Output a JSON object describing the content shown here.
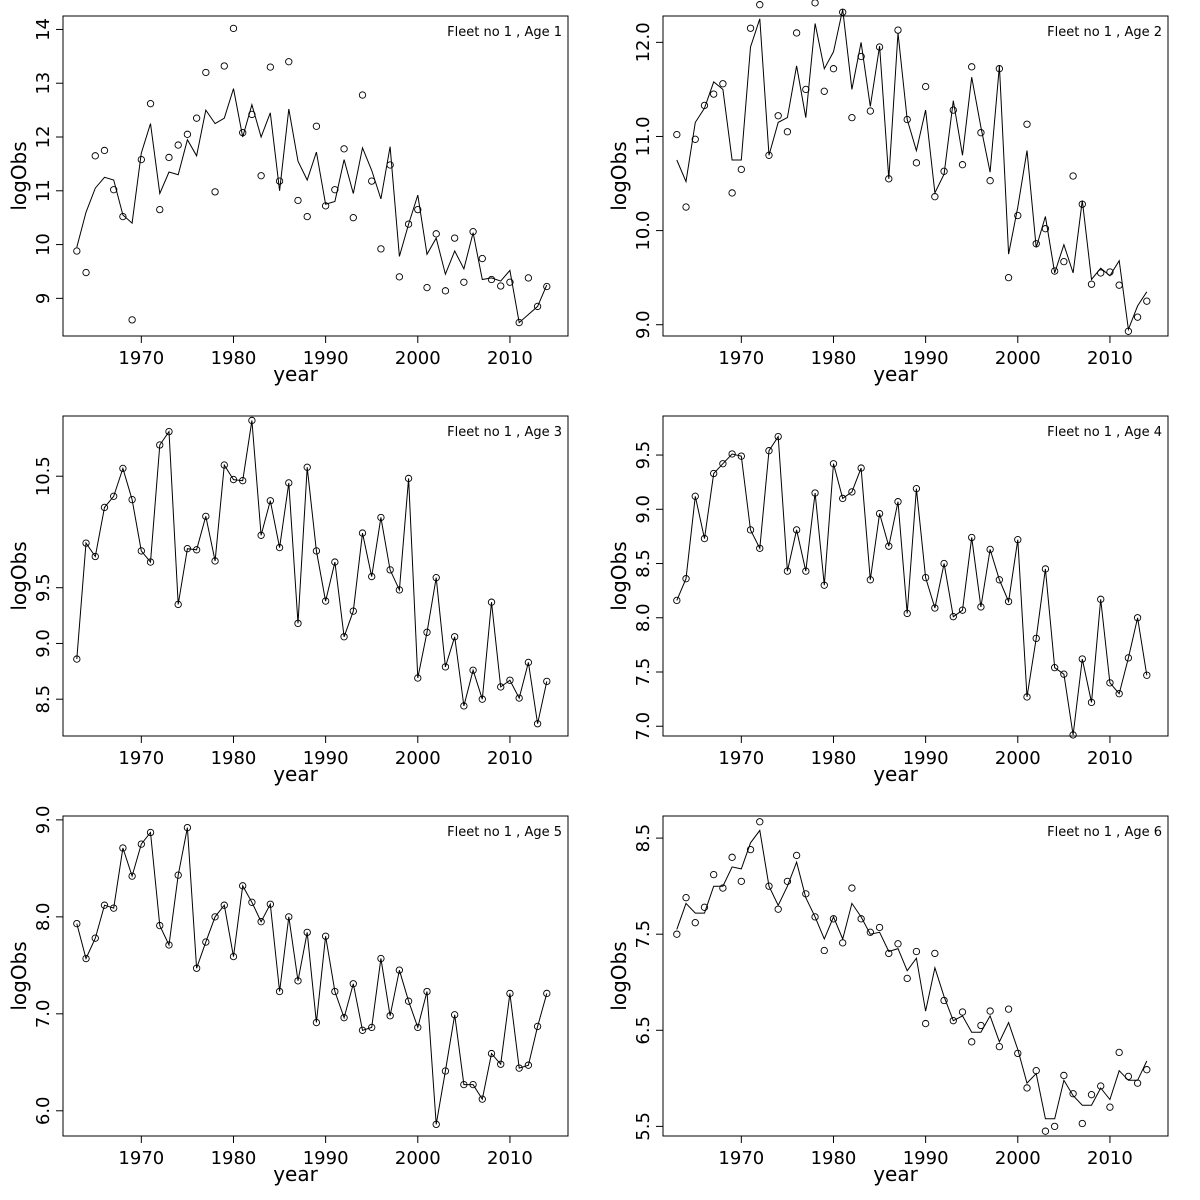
{
  "chart_data": [
    {
      "type": "scatter",
      "title": "Fleet no 1 , Age 1",
      "xlabel": "year",
      "ylabel": "logObs",
      "xlim": [
        1961.5,
        2016.3
      ],
      "ylim": [
        8.3,
        14.25
      ],
      "xticks": [
        "1970",
        "1980",
        "1990",
        "2000",
        "2010"
      ],
      "yticks": [
        "9",
        "10",
        "11",
        "12",
        "13",
        "14"
      ],
      "x": [
        1963,
        1964,
        1965,
        1966,
        1967,
        1968,
        1969,
        1970,
        1971,
        1972,
        1973,
        1974,
        1975,
        1976,
        1977,
        1978,
        1979,
        1980,
        1981,
        1982,
        1983,
        1984,
        1985,
        1986,
        1987,
        1988,
        1989,
        1990,
        1991,
        1992,
        1993,
        1994,
        1995,
        1996,
        1997,
        1998,
        1999,
        2000,
        2001,
        2002,
        2003,
        2004,
        2005,
        2006,
        2007,
        2008,
        2009,
        2010,
        2011,
        2012,
        2013,
        2014
      ],
      "series": [
        {
          "kind": "points",
          "values": [
            9.88,
            9.48,
            11.65,
            11.75,
            11.02,
            10.52,
            8.6,
            11.58,
            12.62,
            10.65,
            11.62,
            11.85,
            12.05,
            12.35,
            13.2,
            10.98,
            13.32,
            14.02,
            12.08,
            12.42,
            11.28,
            13.3,
            11.18,
            13.4,
            10.82,
            10.52,
            12.2,
            10.72,
            11.02,
            11.78,
            10.5,
            12.78,
            11.18,
            9.92,
            11.48,
            9.4,
            10.38,
            10.65,
            9.2,
            10.2,
            9.14,
            10.12,
            9.3,
            10.24,
            9.74,
            9.35,
            9.23,
            9.3,
            8.55,
            9.38,
            8.85,
            9.22
          ]
        },
        {
          "kind": "line",
          "values": [
            9.95,
            10.6,
            11.05,
            11.25,
            11.2,
            10.55,
            10.4,
            11.7,
            12.25,
            10.95,
            11.35,
            11.3,
            11.95,
            11.65,
            12.5,
            12.25,
            12.35,
            12.9,
            12.0,
            12.6,
            12.0,
            12.45,
            11.0,
            12.52,
            11.55,
            11.2,
            11.72,
            10.75,
            10.8,
            11.58,
            10.95,
            11.8,
            11.38,
            10.85,
            11.82,
            9.78,
            10.38,
            10.92,
            9.82,
            10.12,
            9.45,
            9.88,
            9.55,
            10.22,
            9.35,
            9.38,
            9.32,
            9.52,
            8.55,
            8.7,
            8.85,
            9.25
          ]
        }
      ]
    },
    {
      "type": "scatter",
      "title": "Fleet no 1 , Age 2",
      "xlabel": "year",
      "ylabel": "logObs",
      "xlim": [
        1961.5,
        2016.3
      ],
      "ylim": [
        8.88,
        12.28
      ],
      "xticks": [
        "1970",
        "1980",
        "1990",
        "2000",
        "2010"
      ],
      "yticks": [
        "9.0",
        "10.0",
        "11.0",
        "12.0"
      ],
      "x": [
        1963,
        1964,
        1965,
        1966,
        1967,
        1968,
        1969,
        1970,
        1971,
        1972,
        1973,
        1974,
        1975,
        1976,
        1977,
        1978,
        1979,
        1980,
        1981,
        1982,
        1983,
        1984,
        1985,
        1986,
        1987,
        1988,
        1989,
        1990,
        1991,
        1992,
        1993,
        1994,
        1995,
        1996,
        1997,
        1998,
        1999,
        2000,
        2001,
        2002,
        2003,
        2004,
        2005,
        2006,
        2007,
        2008,
        2009,
        2010,
        2011,
        2012,
        2013,
        2014
      ],
      "series": [
        {
          "kind": "points",
          "values": [
            11.02,
            10.25,
            10.97,
            11.33,
            11.45,
            11.56,
            10.4,
            10.65,
            12.15,
            12.4,
            10.8,
            11.22,
            11.05,
            12.1,
            11.5,
            12.42,
            11.48,
            11.72,
            12.32,
            11.2,
            11.85,
            11.27,
            11.95,
            10.55,
            12.13,
            11.18,
            10.72,
            11.53,
            10.36,
            10.63,
            11.28,
            10.7,
            11.74,
            11.04,
            10.53,
            11.72,
            9.5,
            10.16,
            11.13,
            9.86,
            10.02,
            9.57,
            9.67,
            10.58,
            10.28,
            9.43,
            9.55,
            9.56,
            9.42,
            8.93,
            9.08,
            9.25
          ]
        },
        {
          "kind": "line",
          "values": [
            10.75,
            10.52,
            11.15,
            11.3,
            11.58,
            11.5,
            10.75,
            10.75,
            11.95,
            12.25,
            10.8,
            11.15,
            11.2,
            11.75,
            11.2,
            12.2,
            11.72,
            11.9,
            12.35,
            11.5,
            12.0,
            11.32,
            11.96,
            10.55,
            12.1,
            11.18,
            10.85,
            11.28,
            10.4,
            10.6,
            11.38,
            10.8,
            11.63,
            11.1,
            10.62,
            11.75,
            9.75,
            10.25,
            10.85,
            9.82,
            10.15,
            9.55,
            9.85,
            9.55,
            10.32,
            9.48,
            9.6,
            9.52,
            9.68,
            8.95,
            9.2,
            9.35
          ]
        }
      ]
    },
    {
      "type": "scatter",
      "title": "Fleet no 1 , Age 3",
      "xlabel": "year",
      "ylabel": "logObs",
      "xlim": [
        1961.5,
        2016.3
      ],
      "ylim": [
        8.17,
        11.04
      ],
      "xticks": [
        "1970",
        "1980",
        "1990",
        "2000",
        "2010"
      ],
      "yticks": [
        "8.5",
        "9.0",
        "9.5",
        "10.5"
      ],
      "x": [
        1963,
        1964,
        1965,
        1966,
        1967,
        1968,
        1969,
        1970,
        1971,
        1972,
        1973,
        1974,
        1975,
        1976,
        1977,
        1978,
        1979,
        1980,
        1981,
        1982,
        1983,
        1984,
        1985,
        1986,
        1987,
        1988,
        1989,
        1990,
        1991,
        1992,
        1993,
        1994,
        1995,
        1996,
        1997,
        1998,
        1999,
        2000,
        2001,
        2002,
        2003,
        2004,
        2005,
        2006,
        2007,
        2008,
        2009,
        2010,
        2011,
        2012,
        2013,
        2014
      ],
      "series": [
        {
          "kind": "points",
          "values": [
            8.86,
            9.9,
            9.78,
            10.22,
            10.32,
            10.57,
            10.29,
            9.83,
            9.73,
            10.78,
            10.9,
            9.35,
            9.85,
            9.84,
            10.14,
            9.74,
            10.6,
            10.47,
            10.46,
            11.0,
            9.97,
            10.28,
            9.86,
            10.44,
            9.18,
            10.58,
            9.83,
            9.38,
            9.73,
            9.06,
            9.29,
            9.99,
            9.6,
            10.13,
            9.66,
            9.48,
            10.48,
            8.69,
            9.1,
            9.59,
            8.79,
            9.06,
            8.44,
            8.76,
            8.5,
            9.37,
            8.61,
            8.67,
            8.51,
            8.83,
            8.28,
            8.66
          ]
        },
        {
          "kind": "line",
          "values": [
            8.86,
            9.9,
            9.78,
            10.22,
            10.32,
            10.57,
            10.29,
            9.83,
            9.73,
            10.78,
            10.9,
            9.35,
            9.85,
            9.84,
            10.14,
            9.74,
            10.6,
            10.47,
            10.46,
            11.0,
            9.97,
            10.28,
            9.86,
            10.44,
            9.18,
            10.58,
            9.83,
            9.38,
            9.73,
            9.06,
            9.29,
            9.99,
            9.6,
            10.13,
            9.66,
            9.48,
            10.48,
            8.69,
            9.1,
            9.59,
            8.79,
            9.06,
            8.44,
            8.76,
            8.5,
            9.37,
            8.61,
            8.67,
            8.51,
            8.83,
            8.28,
            8.66
          ]
        }
      ]
    },
    {
      "type": "scatter",
      "title": "Fleet no 1 , Age 4",
      "xlabel": "year",
      "ylabel": "logObs",
      "xlim": [
        1961.5,
        2016.3
      ],
      "ylim": [
        6.91,
        9.86
      ],
      "xticks": [
        "1970",
        "1980",
        "1990",
        "2000",
        "2010"
      ],
      "yticks": [
        "7.0",
        "7.5",
        "8.0",
        "8.5",
        "9.0",
        "9.5"
      ],
      "x": [
        1963,
        1964,
        1965,
        1966,
        1967,
        1968,
        1969,
        1970,
        1971,
        1972,
        1973,
        1974,
        1975,
        1976,
        1977,
        1978,
        1979,
        1980,
        1981,
        1982,
        1983,
        1984,
        1985,
        1986,
        1987,
        1988,
        1989,
        1990,
        1991,
        1992,
        1993,
        1994,
        1995,
        1996,
        1997,
        1998,
        1999,
        2000,
        2001,
        2002,
        2003,
        2004,
        2005,
        2006,
        2007,
        2008,
        2009,
        2010,
        2011,
        2012,
        2013,
        2014
      ],
      "series": [
        {
          "kind": "points",
          "values": [
            8.16,
            8.36,
            9.12,
            8.73,
            9.33,
            9.42,
            9.51,
            9.49,
            8.81,
            8.64,
            9.54,
            9.67,
            8.43,
            8.81,
            8.43,
            9.15,
            8.3,
            9.42,
            9.1,
            9.16,
            9.38,
            8.35,
            8.96,
            8.66,
            9.07,
            8.04,
            9.19,
            8.37,
            8.09,
            8.5,
            8.01,
            8.07,
            8.74,
            8.1,
            8.63,
            8.35,
            8.15,
            8.72,
            7.27,
            7.81,
            8.45,
            7.54,
            7.48,
            6.92,
            7.62,
            7.22,
            8.17,
            7.4,
            7.3,
            7.63,
            8.0,
            7.47
          ]
        },
        {
          "kind": "line",
          "values": [
            8.16,
            8.36,
            9.12,
            8.73,
            9.33,
            9.42,
            9.51,
            9.49,
            8.81,
            8.64,
            9.54,
            9.67,
            8.43,
            8.81,
            8.43,
            9.15,
            8.3,
            9.42,
            9.1,
            9.16,
            9.38,
            8.35,
            8.96,
            8.66,
            9.07,
            8.04,
            9.19,
            8.37,
            8.09,
            8.5,
            8.01,
            8.07,
            8.74,
            8.1,
            8.63,
            8.35,
            8.15,
            8.72,
            7.27,
            7.81,
            8.45,
            7.54,
            7.48,
            6.92,
            7.62,
            7.22,
            8.17,
            7.4,
            7.3,
            7.63,
            8.0,
            7.47
          ]
        }
      ]
    },
    {
      "type": "scatter",
      "title": "Fleet no 1 , Age 5",
      "xlabel": "year",
      "ylabel": "logObs",
      "xlim": [
        1961.5,
        2016.3
      ],
      "ylim": [
        5.74,
        9.04
      ],
      "xticks": [
        "1970",
        "1980",
        "1990",
        "2000",
        "2010"
      ],
      "yticks": [
        "6.0",
        "7.0",
        "8.0",
        "9.0"
      ],
      "x": [
        1963,
        1964,
        1965,
        1966,
        1967,
        1968,
        1969,
        1970,
        1971,
        1972,
        1973,
        1974,
        1975,
        1976,
        1977,
        1978,
        1979,
        1980,
        1981,
        1982,
        1983,
        1984,
        1985,
        1986,
        1987,
        1988,
        1989,
        1990,
        1991,
        1992,
        1993,
        1994,
        1995,
        1996,
        1997,
        1998,
        1999,
        2000,
        2001,
        2002,
        2003,
        2004,
        2005,
        2006,
        2007,
        2008,
        2009,
        2010,
        2011,
        2012,
        2013,
        2014
      ],
      "series": [
        {
          "kind": "points",
          "values": [
            7.93,
            7.57,
            7.78,
            8.12,
            8.09,
            8.71,
            8.42,
            8.75,
            8.87,
            7.91,
            7.71,
            8.43,
            8.92,
            7.47,
            7.74,
            8.0,
            8.12,
            7.59,
            8.32,
            8.15,
            7.95,
            8.13,
            7.23,
            8.0,
            7.34,
            7.84,
            6.91,
            7.8,
            7.23,
            6.96,
            7.31,
            6.83,
            6.86,
            7.57,
            6.98,
            7.45,
            7.13,
            6.86,
            7.23,
            5.86,
            6.41,
            6.99,
            6.27,
            6.27,
            6.12,
            6.59,
            6.48,
            7.21,
            6.44,
            6.47,
            6.87,
            7.21
          ]
        },
        {
          "kind": "line",
          "values": [
            7.93,
            7.57,
            7.78,
            8.12,
            8.09,
            8.71,
            8.42,
            8.75,
            8.87,
            7.91,
            7.71,
            8.43,
            8.92,
            7.47,
            7.74,
            8.0,
            8.12,
            7.59,
            8.32,
            8.15,
            7.95,
            8.13,
            7.23,
            8.0,
            7.34,
            7.84,
            6.91,
            7.8,
            7.23,
            6.96,
            7.31,
            6.83,
            6.86,
            7.57,
            6.98,
            7.45,
            7.13,
            6.86,
            7.23,
            5.86,
            6.41,
            6.99,
            6.27,
            6.27,
            6.12,
            6.59,
            6.48,
            7.21,
            6.44,
            6.47,
            6.87,
            7.21
          ]
        }
      ]
    },
    {
      "type": "scatter",
      "title": "Fleet no 1 , Age 6",
      "xlabel": "year",
      "ylabel": "logObs",
      "xlim": [
        1961.5,
        2016.3
      ],
      "ylim": [
        5.4,
        8.73
      ],
      "xticks": [
        "1970",
        "1980",
        "1990",
        "2000",
        "2010"
      ],
      "yticks": [
        "5.5",
        "6.5",
        "7.5",
        "8.5"
      ],
      "x": [
        1963,
        1964,
        1965,
        1966,
        1967,
        1968,
        1969,
        1970,
        1971,
        1972,
        1973,
        1974,
        1975,
        1976,
        1977,
        1978,
        1979,
        1980,
        1981,
        1982,
        1983,
        1984,
        1985,
        1986,
        1987,
        1988,
        1989,
        1990,
        1991,
        1992,
        1993,
        1994,
        1995,
        1996,
        1997,
        1998,
        1999,
        2000,
        2001,
        2002,
        2003,
        2004,
        2005,
        2006,
        2007,
        2008,
        2009,
        2010,
        2011,
        2012,
        2013,
        2014
      ],
      "series": [
        {
          "kind": "points",
          "values": [
            7.5,
            7.88,
            7.62,
            7.78,
            8.12,
            7.98,
            8.3,
            8.05,
            8.38,
            8.67,
            8.0,
            7.76,
            8.05,
            8.32,
            7.92,
            7.68,
            7.33,
            7.66,
            7.41,
            7.98,
            7.66,
            7.52,
            7.57,
            7.3,
            7.4,
            7.04,
            7.32,
            6.57,
            7.3,
            6.81,
            6.6,
            6.69,
            6.38,
            6.55,
            6.7,
            6.33,
            6.72,
            6.26,
            5.9,
            6.08,
            5.45,
            5.5,
            6.03,
            5.84,
            5.53,
            5.83,
            5.92,
            5.7,
            6.27,
            6.02,
            5.95,
            6.09
          ]
        },
        {
          "kind": "line",
          "values": [
            7.55,
            7.82,
            7.72,
            7.72,
            8.0,
            8.0,
            8.2,
            8.18,
            8.45,
            8.58,
            8.0,
            7.8,
            8.0,
            8.25,
            7.88,
            7.68,
            7.45,
            7.68,
            7.45,
            7.82,
            7.68,
            7.5,
            7.52,
            7.32,
            7.35,
            7.12,
            7.25,
            6.7,
            7.15,
            6.85,
            6.6,
            6.65,
            6.48,
            6.48,
            6.65,
            6.38,
            6.58,
            6.3,
            5.95,
            6.05,
            5.58,
            5.58,
            5.98,
            5.82,
            5.72,
            5.72,
            5.9,
            5.78,
            6.08,
            5.98,
            5.98,
            6.18
          ]
        }
      ]
    }
  ]
}
